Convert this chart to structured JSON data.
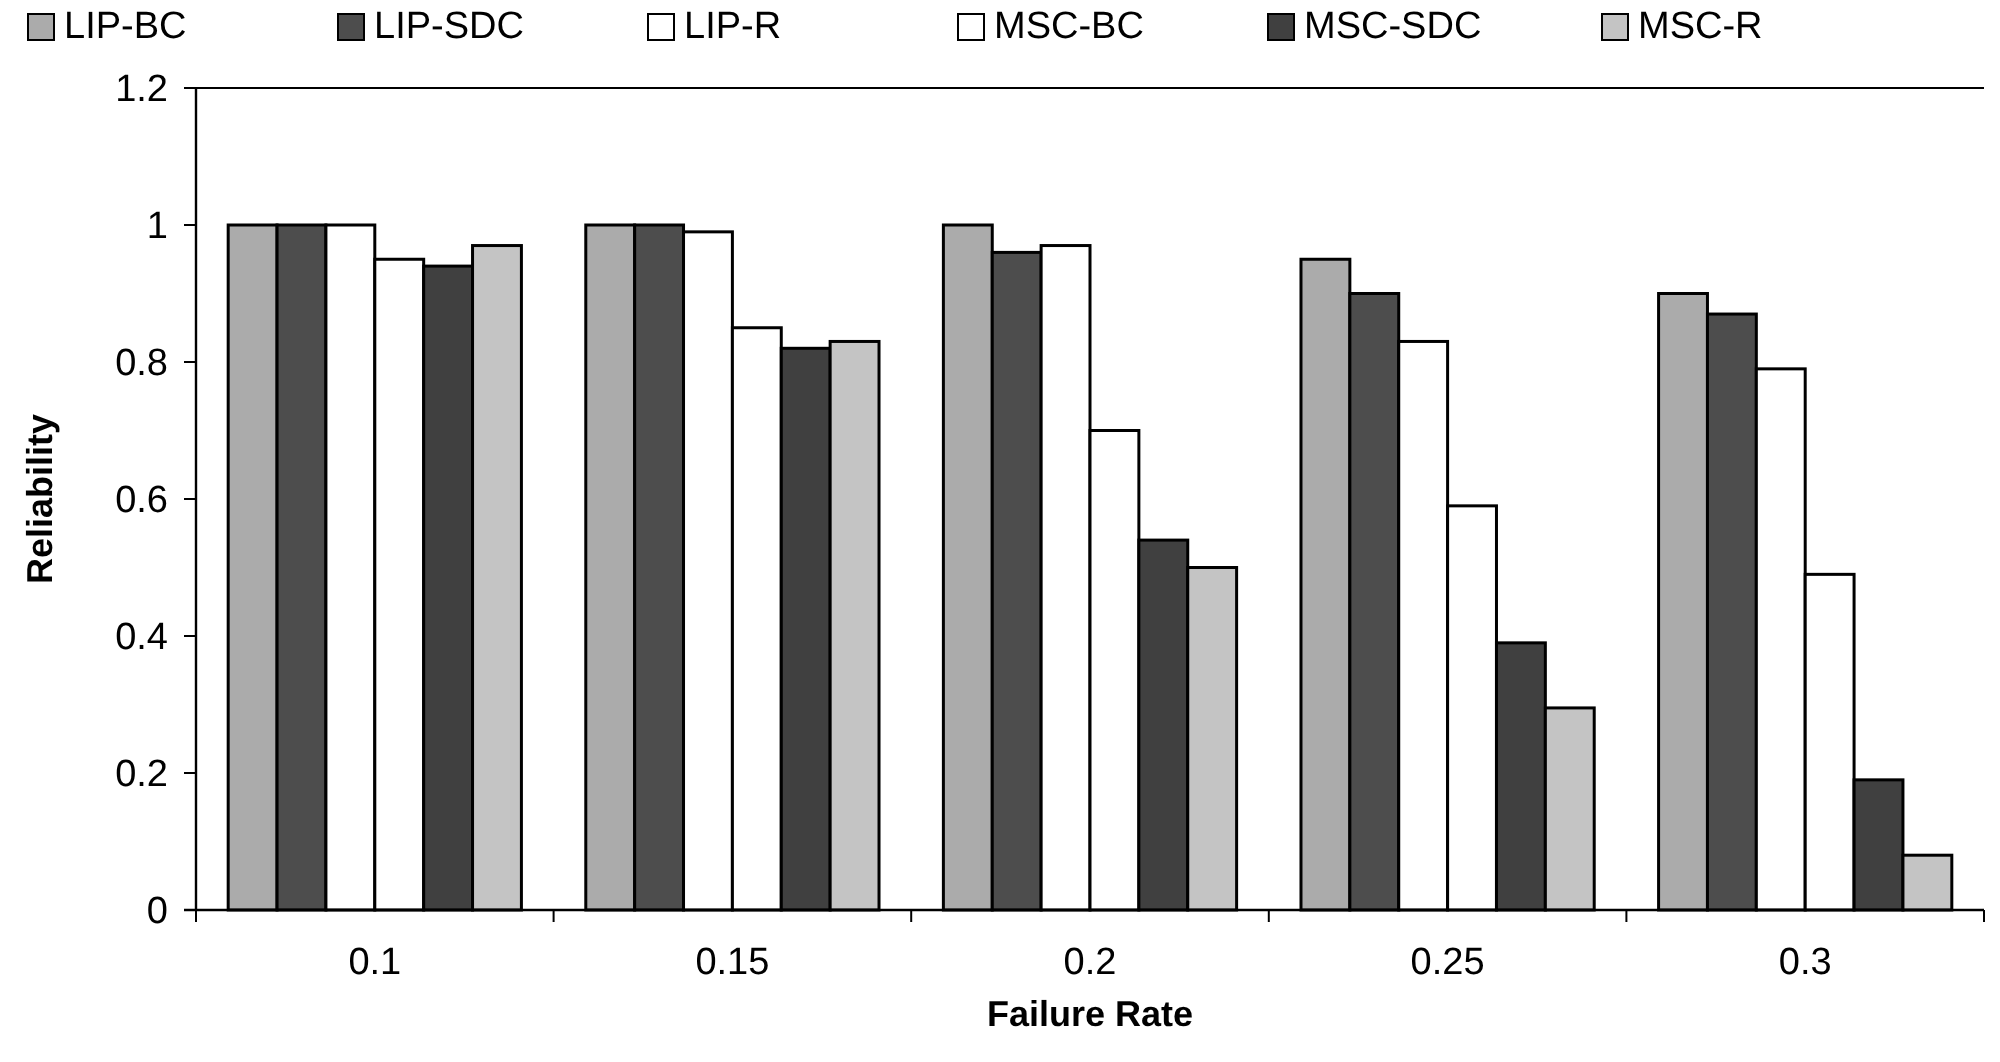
{
  "chart_data": {
    "type": "bar",
    "xlabel": "Failure Rate",
    "ylabel": "Reliability",
    "categories": [
      "0.1",
      "0.15",
      "0.2",
      "0.25",
      "0.3"
    ],
    "series": [
      {
        "name": "LIP-BC",
        "color": "#ababab",
        "values": [
          1,
          1,
          1,
          0.95,
          0.9
        ]
      },
      {
        "name": "LIP-SDC",
        "color": "#4d4d4d",
        "values": [
          1,
          1,
          0.96,
          0.9,
          0.87
        ]
      },
      {
        "name": "LIP-R",
        "color": "#ffffff",
        "values": [
          1,
          0.99,
          0.97,
          0.83,
          0.79
        ]
      },
      {
        "name": "MSC-BC",
        "color": "#ffffff",
        "values": [
          0.95,
          0.85,
          0.7,
          0.59,
          0.49
        ]
      },
      {
        "name": "MSC-SDC",
        "color": "#404040",
        "values": [
          0.94,
          0.82,
          0.54,
          0.39,
          0.19
        ]
      },
      {
        "name": "MSC-R",
        "color": "#c4c4c4",
        "values": [
          0.97,
          0.83,
          0.5,
          0.295,
          0.08
        ]
      }
    ],
    "ylim": [
      0,
      1.2
    ],
    "yticks": [
      0,
      {
        "value": 0.2,
        "label": "0.2"
      },
      {
        "value": 0.4,
        "label": "0.4"
      },
      {
        "value": 0.6,
        "label": "0.6"
      },
      {
        "value": 0.8,
        "label": "0.8"
      },
      1,
      {
        "value": 1.2,
        "label": "1.2"
      }
    ],
    "grid": false,
    "legend": "top"
  }
}
